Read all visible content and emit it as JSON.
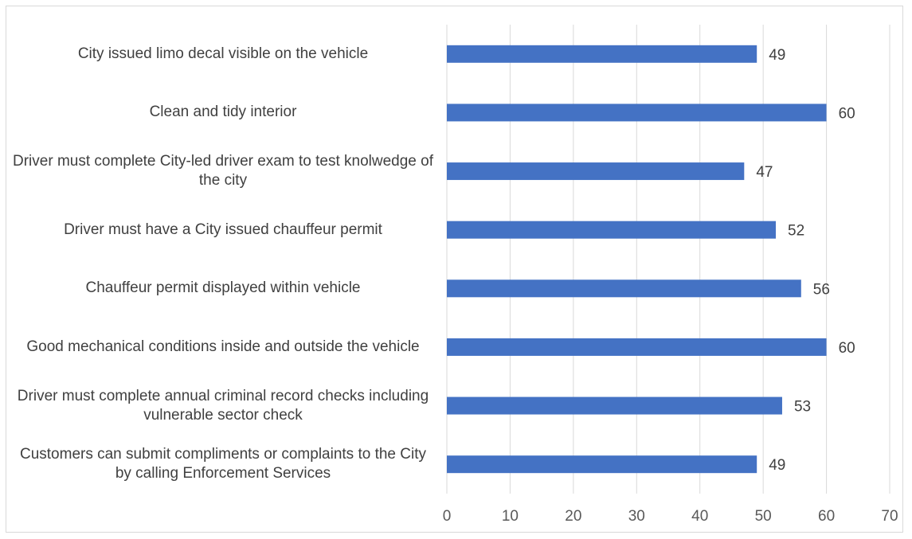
{
  "chart_data": {
    "type": "bar",
    "orientation": "horizontal",
    "categories": [
      "City issued limo decal visible on the vehicle",
      "Clean and tidy interior",
      "Driver must complete City-led driver exam to test knolwedge of the city",
      "Driver must have a City issued chauffeur permit",
      "Chauffeur permit  displayed within vehicle",
      "Good mechanical conditions inside and outside the vehicle",
      "Driver must complete annual criminal record checks including vulnerable sector check",
      "Customers can submit compliments or complaints to the City by calling Enforcement Services"
    ],
    "series": [
      {
        "values": [
          49,
          60,
          47,
          52,
          56,
          60,
          53,
          49
        ]
      }
    ],
    "xlim": [
      0,
      70
    ],
    "x_ticks": [
      0,
      10,
      20,
      30,
      40,
      50,
      60,
      70
    ],
    "grid": "vertical",
    "legend": "none",
    "data_labels": true,
    "title": "",
    "xlabel": "",
    "ylabel": "",
    "colors": {
      "bar": "#4472c4",
      "grid": "#d9d9d9",
      "label_text": "#404040",
      "tick_text": "#595959",
      "border": "#d9d9d9"
    }
  }
}
